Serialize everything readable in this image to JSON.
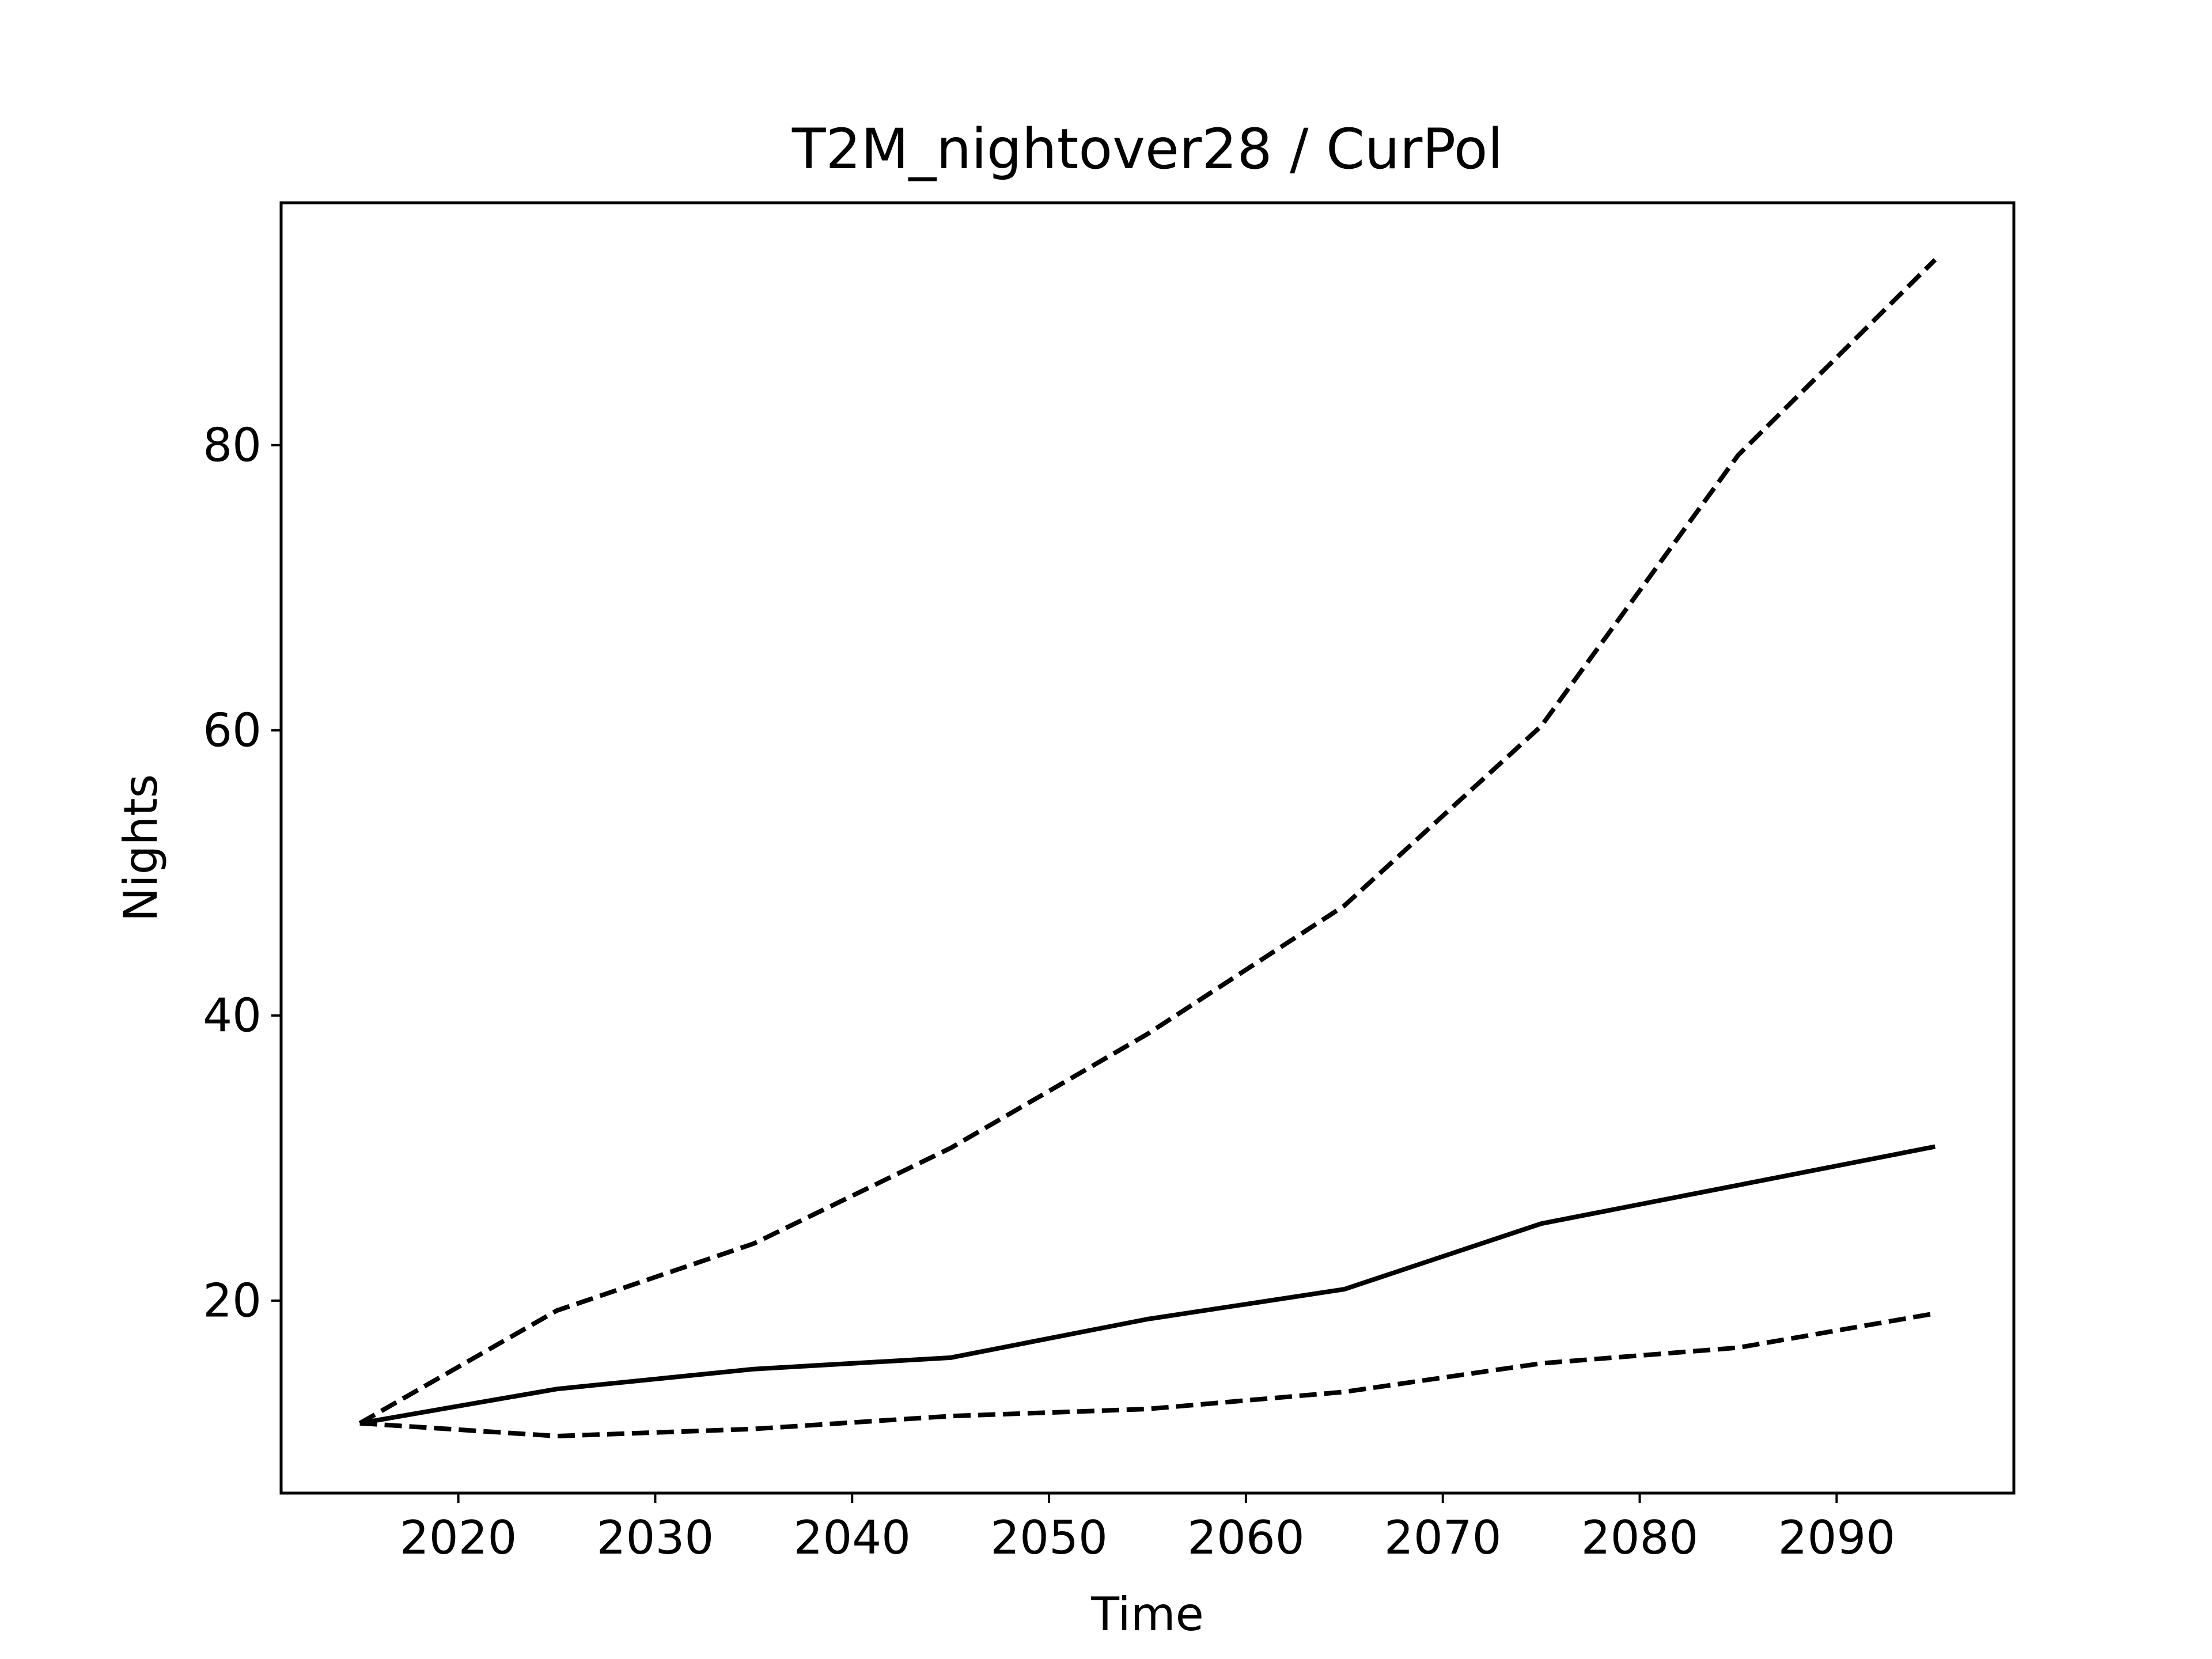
{
  "chart_data": {
    "type": "line",
    "title": "T2M_nightover28 / CurPol",
    "xlabel": "Time",
    "ylabel": "Nights",
    "xlim": [
      2011,
      2099
    ],
    "ylim": [
      6.5,
      97
    ],
    "xticks": [
      2020,
      2030,
      2040,
      2050,
      2060,
      2070,
      2080,
      2090
    ],
    "yticks": [
      20,
      40,
      60,
      80
    ],
    "grid": false,
    "legend": "none",
    "colors": {
      "line": "#000000",
      "frame": "#000000",
      "background": "#ffffff"
    },
    "x": [
      2015,
      2025,
      2035,
      2045,
      2055,
      2065,
      2075,
      2085,
      2095
    ],
    "series": [
      {
        "style": "dashed",
        "values": [
          11.4,
          19.3,
          24.0,
          30.7,
          38.7,
          47.7,
          60.3,
          79.3,
          93.0
        ]
      },
      {
        "style": "solid",
        "values": [
          11.4,
          13.8,
          15.2,
          16.0,
          18.7,
          20.8,
          25.4,
          28.1,
          30.8
        ]
      },
      {
        "style": "dashed",
        "values": [
          11.4,
          10.5,
          11.0,
          11.9,
          12.4,
          13.6,
          15.6,
          16.7,
          19.1
        ]
      }
    ]
  }
}
